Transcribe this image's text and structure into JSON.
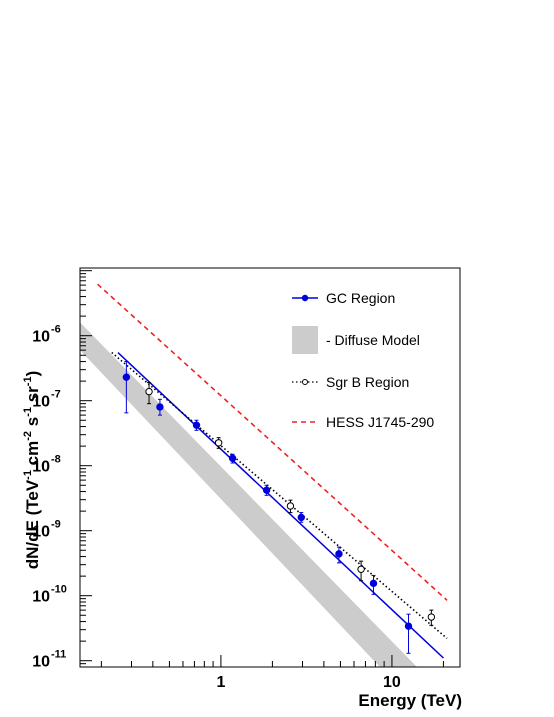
{
  "chart_data": {
    "type": "scatter",
    "title": "",
    "xlabel": "Energy (TeV)",
    "ylabel": "dN/dE (TeV-1 cm-2 s-1 sr-1)",
    "xlim": [
      0.15,
      25
    ],
    "ylim": [
      8e-12,
      1.1e-05
    ],
    "x_scale": "log",
    "y_scale": "log",
    "grid": false,
    "legend_position": "top-right",
    "x_ticks": [
      {
        "value": 1,
        "label": "1"
      },
      {
        "value": 10,
        "label": "10"
      }
    ],
    "y_ticks": [
      {
        "value": 1e-06,
        "base": "10",
        "exp": "-6"
      },
      {
        "value": 1e-07,
        "base": "10",
        "exp": "-7"
      },
      {
        "value": 1e-08,
        "base": "10",
        "exp": "-8"
      },
      {
        "value": 1e-09,
        "base": "10",
        "exp": "-9"
      },
      {
        "value": 1e-10,
        "base": "10",
        "exp": "-10"
      },
      {
        "value": 1e-11,
        "base": "10",
        "exp": "-11"
      }
    ],
    "legend": [
      {
        "key": "gc",
        "label": "GC Region"
      },
      {
        "key": "diffuse",
        "label": "- Diffuse Model"
      },
      {
        "key": "sgrb",
        "label": "Sgr B Region"
      },
      {
        "key": "hess",
        "label": "HESS J1745-290"
      }
    ],
    "series": [
      {
        "key": "gc",
        "name": "GC Region",
        "color": "#0000dd",
        "marker": "filled-circle",
        "points": [
          {
            "x": 0.28,
            "y": 2.3e-07,
            "ylo": 6.5e-08,
            "yhi": 4e-07
          },
          {
            "x": 0.44,
            "y": 8e-08,
            "ylo": 6e-08,
            "yhi": 1.05e-07
          },
          {
            "x": 0.72,
            "y": 4.2e-08,
            "ylo": 3.5e-08,
            "yhi": 5e-08
          },
          {
            "x": 1.17,
            "y": 1.3e-08,
            "ylo": 1.1e-08,
            "yhi": 1.5e-08
          },
          {
            "x": 1.85,
            "y": 4.2e-09,
            "ylo": 3.5e-09,
            "yhi": 5e-09
          },
          {
            "x": 2.95,
            "y": 1.6e-09,
            "ylo": 1.35e-09,
            "yhi": 1.9e-09
          },
          {
            "x": 4.9,
            "y": 4.4e-10,
            "ylo": 3.2e-10,
            "yhi": 5.6e-10
          },
          {
            "x": 7.8,
            "y": 1.55e-10,
            "ylo": 1.05e-10,
            "yhi": 2.05e-10
          },
          {
            "x": 12.5,
            "y": 3.4e-11,
            "ylo": 1.3e-11,
            "yhi": 5.2e-11
          }
        ]
      },
      {
        "key": "sgrb",
        "name": "Sgr B Region",
        "color": "#000000",
        "marker": "open-circle",
        "points": [
          {
            "x": 0.38,
            "y": 1.38e-07,
            "ylo": 9e-08,
            "yhi": 1.9e-07
          },
          {
            "x": 0.97,
            "y": 2.25e-08,
            "ylo": 1.85e-08,
            "yhi": 2.7e-08
          },
          {
            "x": 2.55,
            "y": 2.4e-09,
            "ylo": 1.9e-09,
            "yhi": 2.95e-09
          },
          {
            "x": 6.6,
            "y": 2.55e-10,
            "ylo": 1.7e-10,
            "yhi": 3.4e-10
          },
          {
            "x": 17.0,
            "y": 4.7e-11,
            "ylo": 3.5e-11,
            "yhi": 6e-11
          }
        ]
      }
    ],
    "fits": [
      {
        "key": "gc",
        "name": "GC Region",
        "color": "#0000dd",
        "style": "solid",
        "x": [
          0.25,
          20
        ],
        "y": [
          5.5e-07,
          1.1e-11
        ]
      },
      {
        "key": "sgrb",
        "name": "Sgr B Region",
        "color": "#000000",
        "style": "dotted",
        "x": [
          0.23,
          21
        ],
        "y": [
          5.5e-07,
          2.2e-11
        ]
      },
      {
        "key": "hess",
        "name": "HESS J1745-290",
        "color": "#ee2222",
        "style": "dashed",
        "x": [
          0.19,
          21
        ],
        "y": [
          6.2e-06,
          8.5e-11
        ]
      }
    ],
    "bands": [
      {
        "key": "diffuse",
        "name": "- Diffuse Model",
        "color": "#cccccc",
        "x": [
          0.15,
          14
        ],
        "upper": [
          1.6e-06,
          8e-12
        ],
        "lower": [
          6e-07,
          2e-12
        ]
      }
    ]
  }
}
